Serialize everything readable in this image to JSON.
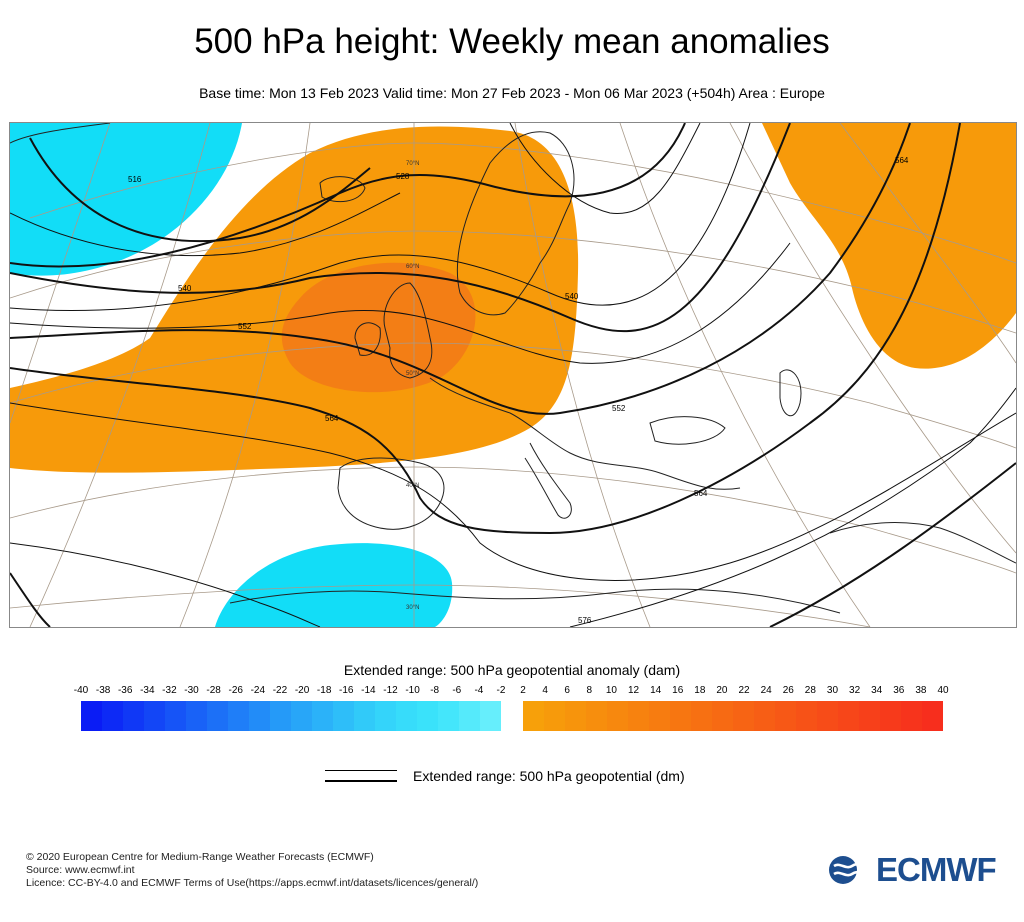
{
  "title": "500 hPa height: Weekly mean anomalies",
  "subtitle": "Base time: Mon 13 Feb 2023 Valid time: Mon 27 Feb 2023 - Mon 06 Mar 2023 (+504h) Area : Europe",
  "map": {
    "contour_labels": [
      "516",
      "528",
      "540",
      "540",
      "552",
      "552",
      "564",
      "564",
      "564",
      "576"
    ],
    "latitude_labels": [
      "70°N",
      "60°N",
      "50°N",
      "40°N",
      "30°N"
    ],
    "colors": {
      "negative": "#12ddf7",
      "positive": "#f79a0a",
      "core": "#f2741a",
      "line": "#111111",
      "coast": "#222222",
      "grid": "#a89a8a"
    }
  },
  "colorbar": {
    "title": "Extended range: 500 hPa geopotential anomaly (dam)",
    "ticks": [
      "-40",
      "-38",
      "-36",
      "-34",
      "-32",
      "-30",
      "-28",
      "-26",
      "-24",
      "-22",
      "-20",
      "-18",
      "-16",
      "-14",
      "-12",
      "-10",
      "-8",
      "-6",
      "-4",
      "-2",
      "2",
      "4",
      "6",
      "8",
      "10",
      "12",
      "14",
      "16",
      "18",
      "20",
      "22",
      "24",
      "26",
      "28",
      "30",
      "32",
      "34",
      "36",
      "38",
      "40"
    ],
    "negative_colors": [
      "#0a1cf5",
      "#0d2af6",
      "#1038f6",
      "#1346f6",
      "#1654f7",
      "#1962f7",
      "#1c70f7",
      "#1f7ef8",
      "#228cf8",
      "#259af8",
      "#28a6f8",
      "#2bb2f9",
      "#2ebef9",
      "#31caf9",
      "#34d4fa",
      "#37dcfa",
      "#3ae2fa",
      "#44e6fb",
      "#55eafb",
      "#66eefc"
    ],
    "positive_colors": [
      "#f7a00a",
      "#f79a0b",
      "#f7940c",
      "#f78e0d",
      "#f7880e",
      "#f7820f",
      "#f77c10",
      "#f77611",
      "#f77012",
      "#f76a13",
      "#f76414",
      "#f75e15",
      "#f75816",
      "#f75217",
      "#f74c18",
      "#f74619",
      "#f7401a",
      "#f73a1b",
      "#f7341c",
      "#f72e1d"
    ]
  },
  "legend": {
    "label": "Extended range: 500 hPa geopotential (dm)"
  },
  "footer": {
    "line1": "© 2020 European Centre for Medium-Range Weather Forecasts (ECMWF)",
    "line2": "Source: www.ecmwf.int",
    "line3": "Licence: CC-BY-4.0 and ECMWF Terms of Use(https://apps.ecmwf.int/datasets/licences/general/)"
  },
  "logo": {
    "text": "ECMWF"
  }
}
